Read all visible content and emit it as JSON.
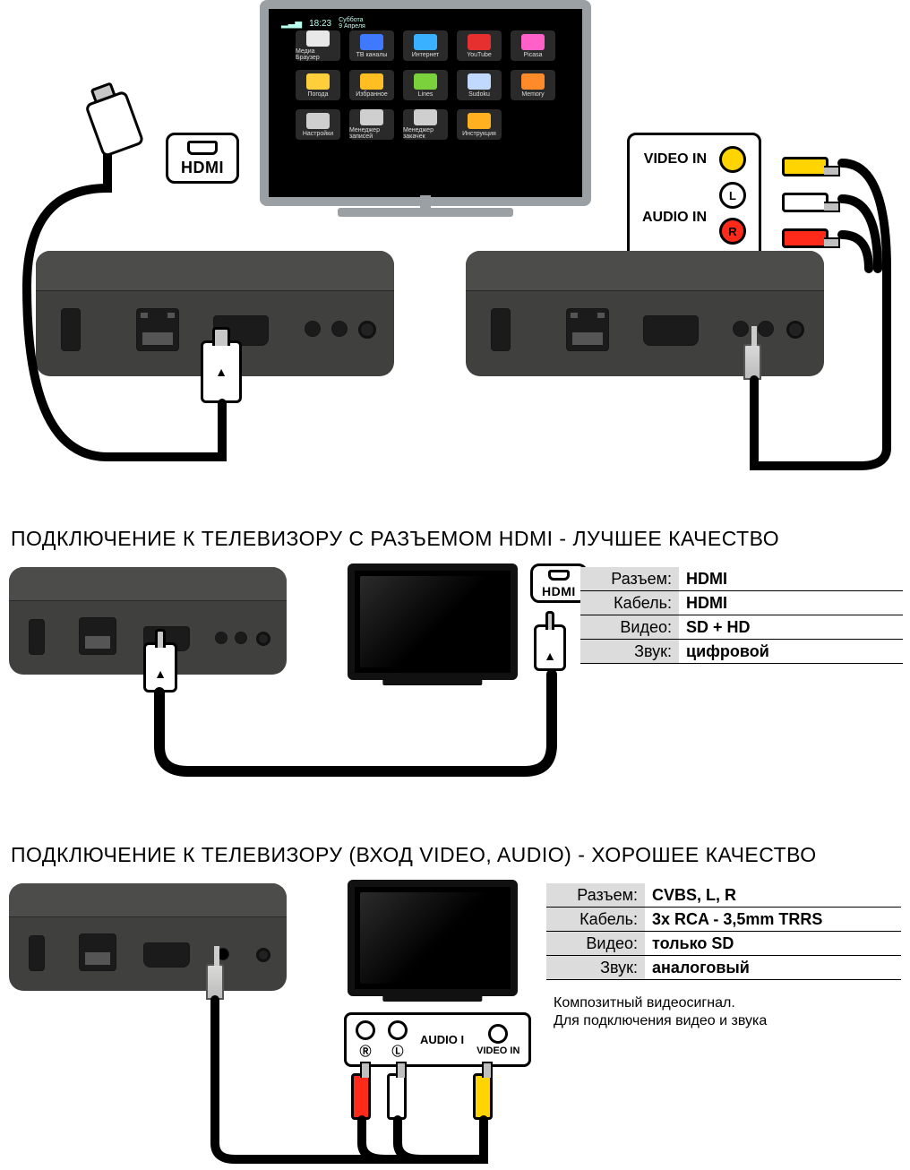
{
  "top": {
    "hdmi_tag": "HDMI",
    "tv_panel": {
      "video_in": "VIDEO IN",
      "audio_in": "AUDIO IN",
      "left": "L",
      "right": "R"
    },
    "smart_tv": {
      "time": "18:23",
      "date": "Суббота\n9 Апреля",
      "apps": [
        {
          "label": "Медиа Браузер",
          "bg": "#2a2a2a",
          "ic": "#e8e8e8"
        },
        {
          "label": "ТВ каналы",
          "bg": "#2a2a2a",
          "ic": "#3f79ff"
        },
        {
          "label": "Интернет",
          "bg": "#2a2a2a",
          "ic": "#39b1ff"
        },
        {
          "label": "YouTube",
          "bg": "#2a2a2a",
          "ic": "#e63030"
        },
        {
          "label": "Picasa",
          "bg": "#2a2a2a",
          "ic": "#ff61c8"
        },
        {
          "label": "Погода",
          "bg": "#2a2a2a",
          "ic": "#ffcf3b"
        },
        {
          "label": "Избранное",
          "bg": "#2a2a2a",
          "ic": "#ffbe22"
        },
        {
          "label": "Lines",
          "bg": "#2a2a2a",
          "ic": "#7bd13b"
        },
        {
          "label": "Sudoku",
          "bg": "#2a2a2a",
          "ic": "#c1d9ff"
        },
        {
          "label": "Memory",
          "bg": "#2a2a2a",
          "ic": "#ff8a2a"
        },
        {
          "label": "Настройки",
          "bg": "#2a2a2a",
          "ic": "#cfcfcf"
        },
        {
          "label": "Менеджер записей",
          "bg": "#2a2a2a",
          "ic": "#cfcfcf"
        },
        {
          "label": "Менеджер закачек",
          "bg": "#2a2a2a",
          "ic": "#cfcfcf"
        },
        {
          "label": "Инструкция",
          "bg": "#2a2a2a",
          "ic": "#ffb020"
        }
      ]
    }
  },
  "sec_hdmi": {
    "title": "ПОДКЛЮЧЕНИЕ К ТЕЛЕВИЗОРУ С РАЗЪЕМОМ HDMI - ЛУЧШЕЕ КАЧЕСТВО",
    "hdmi_tag": "HDMI",
    "specs": [
      [
        "Разъем:",
        "HDMI"
      ],
      [
        "Кабель:",
        "HDMI"
      ],
      [
        "Видео:",
        "SD + HD"
      ],
      [
        "Звук:",
        "цифровой"
      ]
    ]
  },
  "sec_av": {
    "title": "ПОДКЛЮЧЕНИЕ К ТЕЛЕВИЗОРУ (ВХОД VIDEO, AUDIO) - ХОРОШЕЕ КАЧЕСТВО",
    "panel": {
      "audio": "AUDIO I",
      "video": "VIDEO IN",
      "r": "R",
      "l": "L"
    },
    "specs": [
      [
        "Разъем:",
        "CVBS, L, R"
      ],
      [
        "Кабель:",
        "3x RCA - 3,5mm TRRS"
      ],
      [
        "Видео:",
        "только SD"
      ],
      [
        "Звук:",
        "аналоговый"
      ]
    ],
    "note": "Композитный видеосигнал.\nДля подключения видео и звука"
  },
  "colors": {
    "rca_yellow": "#ffd400",
    "rca_white": "#ffffff",
    "rca_red": "#ff2a1a",
    "box": "#40403f"
  }
}
